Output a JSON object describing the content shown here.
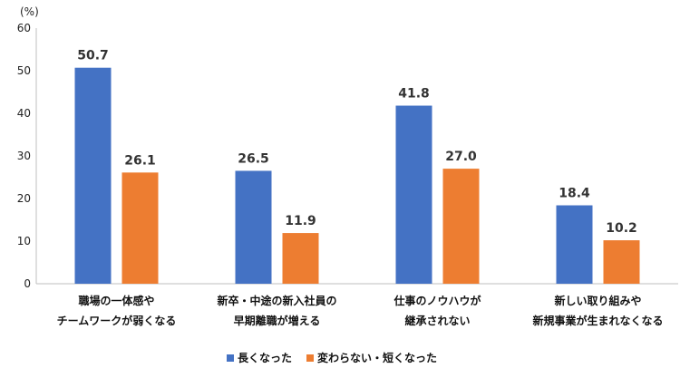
{
  "chart_data": {
    "type": "bar",
    "unit_label": "(%)",
    "categories": [
      [
        "職場の一体感や",
        "チームワークが弱くなる"
      ],
      [
        "新卒・中途の新入社員の",
        "早期離職が増える"
      ],
      [
        "仕事のノウハウが",
        "継承されない"
      ],
      [
        "新しい取り組みや",
        "新規事業が生まれなくなる"
      ]
    ],
    "series": [
      {
        "name": "長くなった",
        "color": "#4472C4",
        "values": [
          50.7,
          26.5,
          41.8,
          18.4
        ]
      },
      {
        "name": "変わらない・短くなった",
        "color": "#ED7D31",
        "values": [
          26.1,
          11.9,
          27.0,
          10.2
        ]
      }
    ],
    "ylim": [
      0,
      60
    ],
    "yticks": [
      0,
      10,
      20,
      30,
      40,
      50,
      60
    ],
    "legend": "bottom",
    "grid": false
  }
}
